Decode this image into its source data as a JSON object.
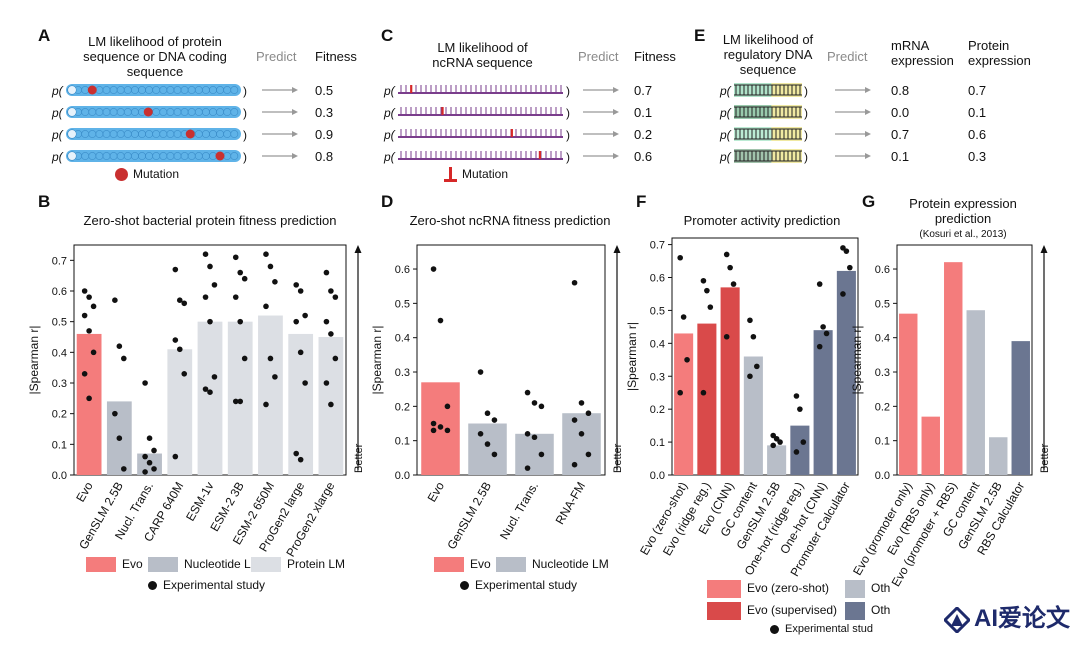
{
  "colors": {
    "evo": "#f47c7c",
    "evo_sup": "#d94a4a",
    "nucl": "#b8bec8",
    "prot": "#dcdfe4",
    "other_dark": "#6b7691",
    "dot": "#111111",
    "mut": "#d62828",
    "seq": "#5fb3e8"
  },
  "A": {
    "letter": "A",
    "header": "LM likelihood of protein sequence or DNA coding sequence",
    "predict": "Predict",
    "fitness": "Fitness",
    "p": "p(",
    "close": ")",
    "values": [
      "0.5",
      "0.3",
      "0.9",
      "0.8"
    ],
    "mut_label": "Mutation"
  },
  "C": {
    "letter": "C",
    "header": "LM likelihood of ncRNA sequence",
    "predict": "Predict",
    "fitness": "Fitness",
    "p": "p(",
    "close": ")",
    "values": [
      "0.7",
      "0.1",
      "0.2",
      "0.6"
    ],
    "mut_label": "Mutation"
  },
  "E": {
    "letter": "E",
    "header": "LM likelihood of regulatory DNA sequence",
    "predict": "Predict",
    "col1": "mRNA expression",
    "col2": "Protein expression",
    "p": "p(",
    "close": ")",
    "values1": [
      "0.8",
      "0.0",
      "0.7",
      "0.1"
    ],
    "values2": [
      "0.7",
      "0.1",
      "0.6",
      "0.3"
    ]
  },
  "B": {
    "letter": "B",
    "legend": {
      "evo": "Evo",
      "nucl": "Nucleotide LM",
      "prot": "Protein LM",
      "exp": "Experimental study"
    },
    "better": "Better"
  },
  "D": {
    "letter": "D",
    "legend": {
      "evo": "Evo",
      "nucl": "Nucleotide LM",
      "exp": "Experimental study"
    },
    "better": "Better"
  },
  "F": {
    "letter": "F",
    "legend": {
      "zs": "Evo (zero-shot)",
      "sup": "Evo (supervised)",
      "oth1": "Oth",
      "oth2": "Oth",
      "exp": "Experimental stud"
    }
  },
  "G": {
    "letter": "G",
    "better": "Better"
  },
  "watermark": "AI爱论文",
  "chart_data": [
    {
      "type": "bar",
      "title": "Zero-shot bacterial protein fitness prediction",
      "ylabel": "|Spearman r|",
      "ylim": [
        0,
        0.75
      ],
      "yticks": [
        "0.0",
        "0.1",
        "0.2",
        "0.3",
        "0.4",
        "0.5",
        "0.6",
        "0.7"
      ],
      "categories": [
        "Evo",
        "GenSLM 2.5B",
        "Nucl. Trans.",
        "CARP 640M",
        "ESM-1v",
        "ESM-2 3B",
        "ESM-2 650M",
        "ProGen2 large",
        "ProGen2 xlarge"
      ],
      "groups": [
        "evo",
        "nucl",
        "nucl",
        "prot",
        "prot",
        "prot",
        "prot",
        "prot",
        "prot"
      ],
      "values": [
        0.46,
        0.24,
        0.07,
        0.41,
        0.5,
        0.5,
        0.52,
        0.46,
        0.45
      ],
      "points": [
        [
          0.6,
          0.58,
          0.55,
          0.52,
          0.47,
          0.4,
          0.33,
          0.25
        ],
        [
          0.57,
          0.42,
          0.38,
          0.2,
          0.12,
          0.02
        ],
        [
          0.3,
          0.12,
          0.08,
          0.06,
          0.04,
          0.02,
          0.01
        ],
        [
          0.67,
          0.57,
          0.56,
          0.44,
          0.41,
          0.33,
          0.06
        ],
        [
          0.72,
          0.68,
          0.62,
          0.58,
          0.5,
          0.32,
          0.28,
          0.27
        ],
        [
          0.71,
          0.66,
          0.64,
          0.58,
          0.5,
          0.38,
          0.24,
          0.24
        ],
        [
          0.72,
          0.68,
          0.63,
          0.55,
          0.38,
          0.32,
          0.23
        ],
        [
          0.62,
          0.6,
          0.52,
          0.5,
          0.4,
          0.3,
          0.07,
          0.05
        ],
        [
          0.66,
          0.6,
          0.58,
          0.5,
          0.46,
          0.38,
          0.3,
          0.23
        ]
      ]
    },
    {
      "type": "bar",
      "title": "Zero-shot ncRNA fitness prediction",
      "ylabel": "|Spearman r|",
      "ylim": [
        0,
        0.67
      ],
      "yticks": [
        "0.0",
        "0.1",
        "0.2",
        "0.3",
        "0.4",
        "0.5",
        "0.6"
      ],
      "categories": [
        "Evo",
        "GenSLM 2.5B",
        "Nucl. Trans.",
        "RNA-FM"
      ],
      "groups": [
        "evo",
        "nucl",
        "nucl",
        "nucl"
      ],
      "values": [
        0.27,
        0.15,
        0.12,
        0.18
      ],
      "points": [
        [
          0.6,
          0.45,
          0.2,
          0.15,
          0.14,
          0.13,
          0.13
        ],
        [
          0.3,
          0.18,
          0.16,
          0.12,
          0.09,
          0.06
        ],
        [
          0.24,
          0.21,
          0.2,
          0.12,
          0.11,
          0.06,
          0.02
        ],
        [
          0.56,
          0.21,
          0.18,
          0.16,
          0.12,
          0.06,
          0.03
        ]
      ]
    },
    {
      "type": "bar",
      "title": "Promoter activity prediction",
      "ylabel": "|Spearman r|",
      "ylim": [
        0,
        0.72
      ],
      "yticks": [
        "0.0",
        "0.1",
        "0.2",
        "0.3",
        "0.4",
        "0.5",
        "0.6",
        "0.7"
      ],
      "categories": [
        "Evo (zero-shot)",
        "Evo (ridge reg.)",
        "Evo (CNN)",
        "GC content",
        "GenSLM 2.5B",
        "One-hot (ridge reg.)",
        "One-hot (CNN)",
        "Promoter Calculator"
      ],
      "groups": [
        "zs",
        "sup",
        "sup",
        "oth_light",
        "oth_light",
        "oth_dark",
        "oth_dark",
        "oth_dark"
      ],
      "values": [
        0.43,
        0.46,
        0.57,
        0.36,
        0.09,
        0.15,
        0.44,
        0.62
      ],
      "points": [
        [
          0.66,
          0.48,
          0.35,
          0.25
        ],
        [
          0.59,
          0.56,
          0.51,
          0.25
        ],
        [
          0.67,
          0.63,
          0.58,
          0.42
        ],
        [
          0.47,
          0.42,
          0.33,
          0.3
        ],
        [
          0.12,
          0.11,
          0.1,
          0.09
        ],
        [
          0.24,
          0.2,
          0.1,
          0.07
        ],
        [
          0.58,
          0.45,
          0.43,
          0.39
        ],
        [
          0.69,
          0.68,
          0.63,
          0.55
        ]
      ]
    },
    {
      "type": "bar",
      "title": "Protein expression prediction",
      "subtitle": "(Kosuri et al., 2013)",
      "ylabel": "|Spearman r|",
      "ylim": [
        0,
        0.67
      ],
      "yticks": [
        "0.0",
        "0.1",
        "0.2",
        "0.3",
        "0.4",
        "0.5",
        "0.6"
      ],
      "categories": [
        "Evo (promoter only)",
        "Evo (RBS only)",
        "Evo (promoter + RBS)",
        "GC content",
        "GenSLM 2.5B",
        "RBS Calculator"
      ],
      "groups": [
        "zs",
        "zs",
        "zs",
        "oth_light",
        "oth_light",
        "oth_dark"
      ],
      "values": [
        0.47,
        0.17,
        0.62,
        0.48,
        0.11,
        0.39
      ],
      "points": []
    }
  ]
}
